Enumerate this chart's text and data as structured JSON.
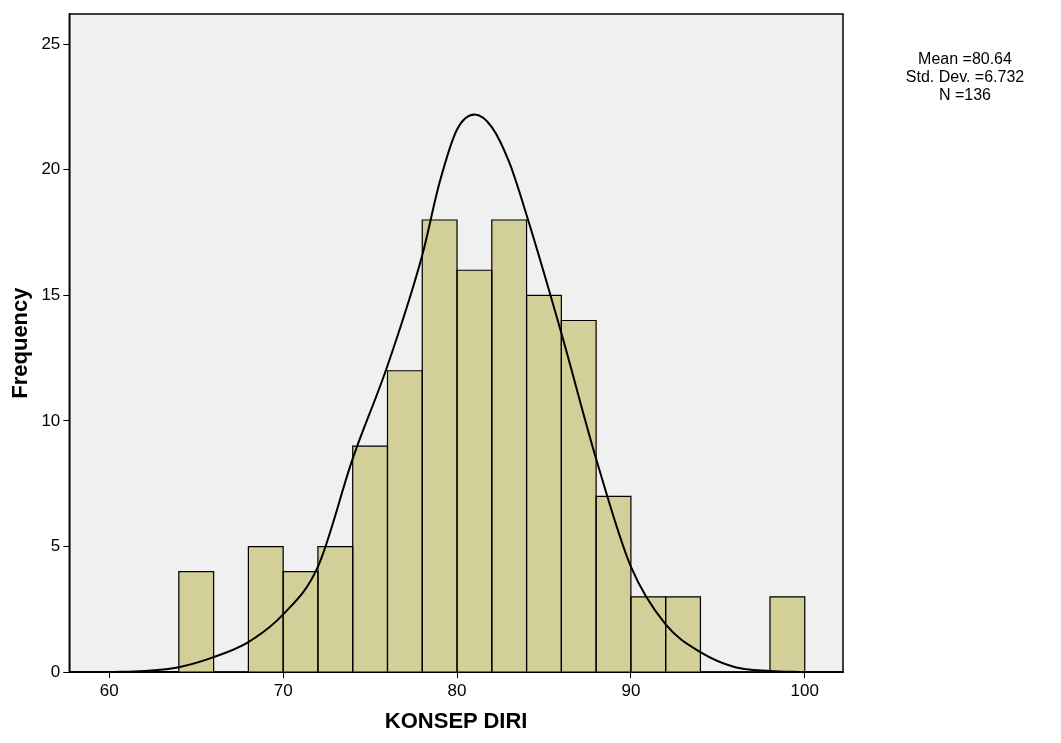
{
  "chart_data": {
    "type": "histogram",
    "xlabel": "KONSEP DIRI",
    "ylabel": "Frequency",
    "bins": [
      64,
      66,
      68,
      70,
      72,
      74,
      76,
      78,
      80,
      82,
      84,
      86,
      88,
      90,
      92,
      94,
      96,
      98,
      100
    ],
    "values": [
      4,
      0,
      5,
      4,
      5,
      9,
      12,
      18,
      16,
      18,
      15,
      14,
      7,
      3,
      3,
      0,
      0,
      3
    ],
    "color": "#d3cf99",
    "series": [
      {
        "type": "line",
        "color": "#000000",
        "x": [
          60,
          62,
          64,
          66,
          68,
          70,
          72,
          74,
          76,
          78,
          79,
          80,
          81,
          82,
          83,
          84,
          86,
          88,
          90,
          92,
          94,
          96,
          98,
          100
        ],
        "values": [
          0,
          0.05,
          0.2,
          0.6,
          1.2,
          2.3,
          4.2,
          8.5,
          12.2,
          16.6,
          19.5,
          21.6,
          22.2,
          21.7,
          20.3,
          18.2,
          13.5,
          8.5,
          4.2,
          1.9,
          0.8,
          0.2,
          0.05,
          0
        ]
      }
    ],
    "xlim": [
      57.7,
      102.2
    ],
    "xticks": [
      60,
      70,
      80,
      90,
      100
    ],
    "ylim": [
      0,
      26.2
    ],
    "yticks": [
      0,
      5,
      10,
      15,
      20,
      25
    ],
    "annotations": [
      "Mean =80.64",
      "Std. Dev. =6.732",
      "N =136"
    ]
  }
}
